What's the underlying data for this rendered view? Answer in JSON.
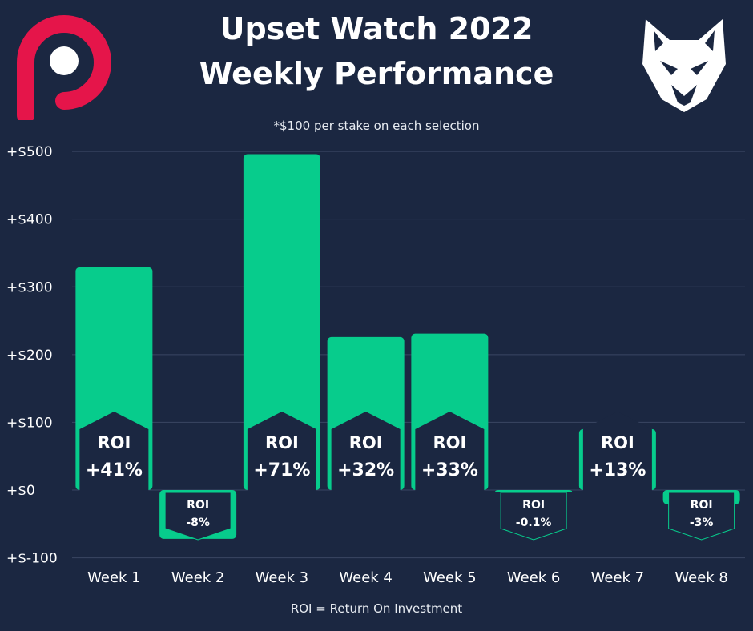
{
  "title_line1": "Upset Watch 2022",
  "title_line2": "Weekly Performance",
  "subtitle": "*$100 per stake on each selection",
  "footnote": "ROI = Return On Investment",
  "colors": {
    "background": "#1b2741",
    "bar": "#07cc8c",
    "label_bg": "#1b2741",
    "grid": "#3a4663",
    "text": "#ffffff",
    "logo_p": "#e5154a"
  },
  "chart_data": {
    "type": "bar",
    "categories": [
      "Week 1",
      "Week 2",
      "Week 3",
      "Week 4",
      "Week 5",
      "Week 6",
      "Week 7",
      "Week 8"
    ],
    "values": [
      329,
      -72,
      496,
      226,
      231,
      -3,
      90,
      -21
    ],
    "roi_labels": [
      [
        "ROI",
        "+41%"
      ],
      [
        "ROI",
        "-8%"
      ],
      [
        "ROI",
        "+71%"
      ],
      [
        "ROI",
        "+32%"
      ],
      [
        "ROI",
        "+33%"
      ],
      [
        "ROI",
        "-0.1%"
      ],
      [
        "ROI",
        "+13%"
      ],
      [
        "ROI",
        "-3%"
      ]
    ],
    "ytick_labels": [
      "+$-100",
      "+$0",
      "+$100",
      "+$200",
      "+$300",
      "+$400",
      "+$500"
    ],
    "ytick_values": [
      -100,
      0,
      100,
      200,
      300,
      400,
      500
    ],
    "ylim": [
      -100,
      500
    ],
    "grid": true,
    "legend": "none"
  }
}
